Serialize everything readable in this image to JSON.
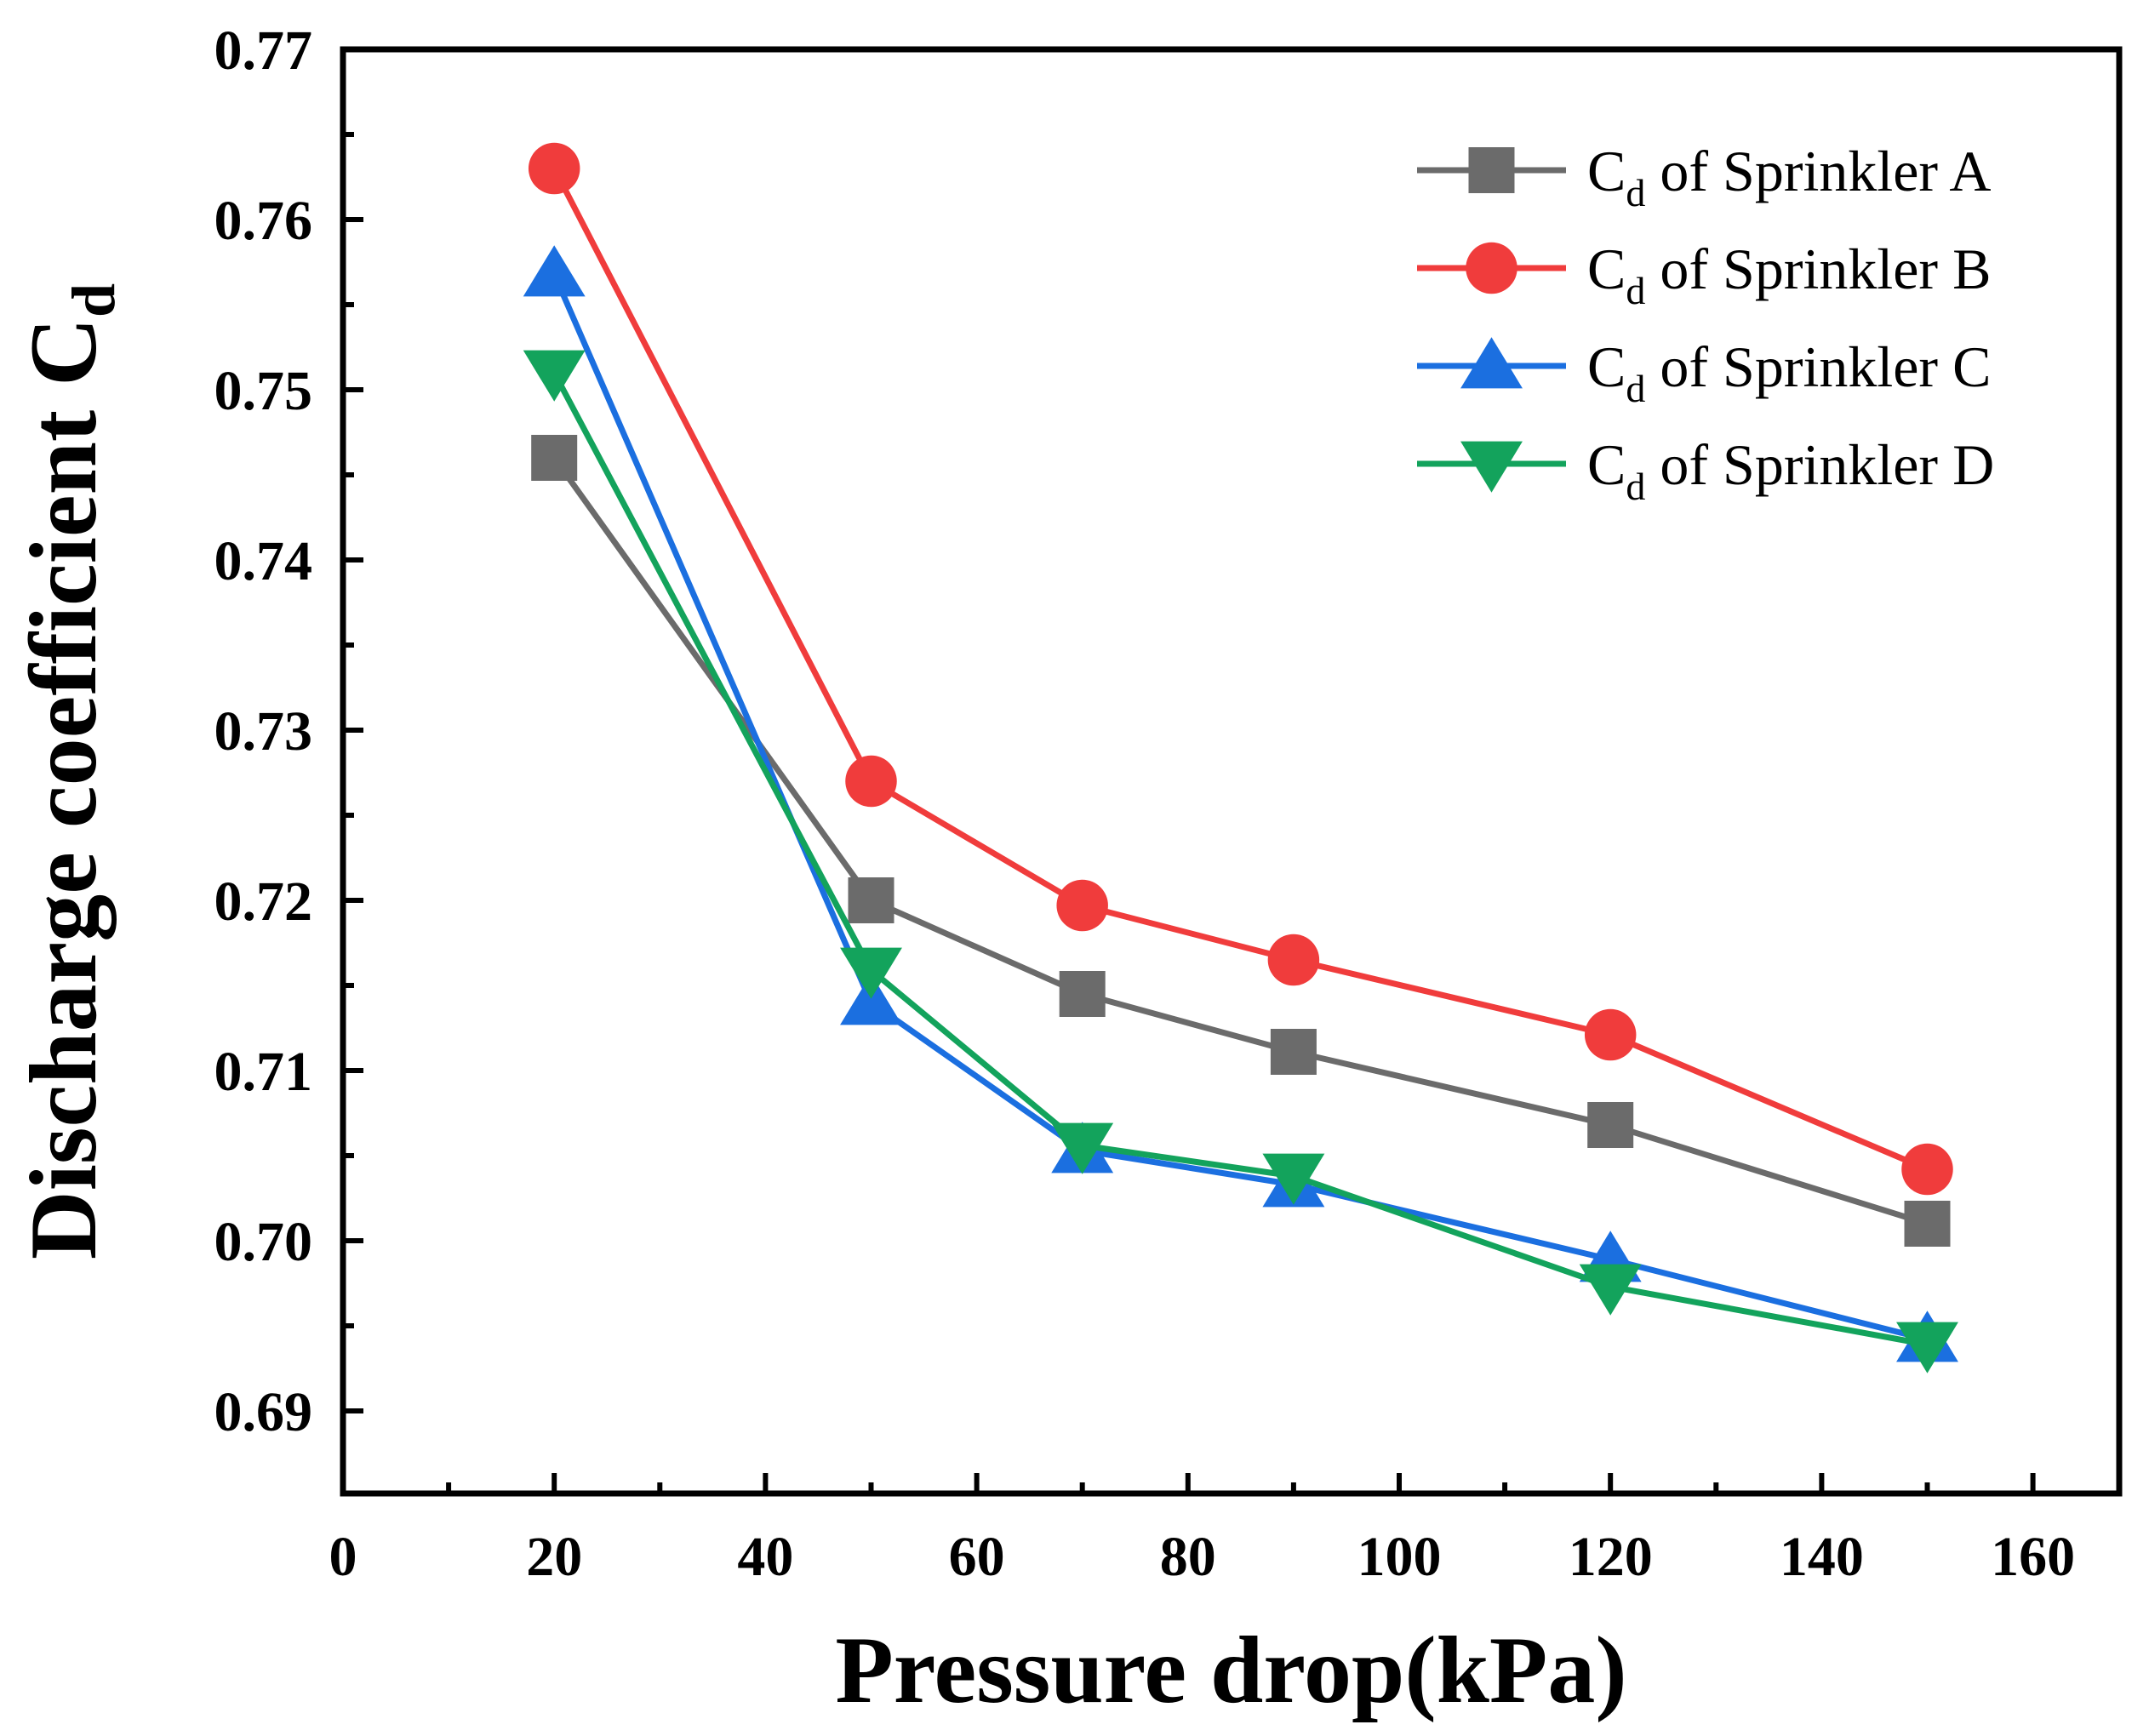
{
  "chart_data": {
    "type": "line",
    "title": "",
    "xlabel": "Pressure drop(kPa)",
    "ylabel_main": "Discharge coefficient C",
    "ylabel_sub": "d",
    "x": [
      20,
      50,
      70,
      90,
      120,
      150
    ],
    "xlim": [
      0,
      170
    ],
    "ylim": [
      0.6853,
      0.77
    ],
    "xticks": [
      0,
      20,
      40,
      60,
      80,
      100,
      120,
      140,
      160
    ],
    "xtick_labels": [
      "0",
      "20",
      "40",
      "60",
      "80",
      "100",
      "120",
      "140",
      "160"
    ],
    "yticks": [
      0.69,
      0.7,
      0.71,
      0.72,
      0.73,
      0.74,
      0.75,
      0.76,
      0.77
    ],
    "ytick_labels": [
      "0.69",
      "0.70",
      "0.71",
      "0.72",
      "0.73",
      "0.74",
      "0.75",
      "0.76",
      "0.77"
    ],
    "legend_position": "top-right",
    "series": [
      {
        "name": "Sprinkler A",
        "label_main": "C",
        "label_sub": "d",
        "label_rest": " of Sprinkler A",
        "marker": "square",
        "color": "#6b6b6b",
        "values": [
          0.746,
          0.72,
          0.7145,
          0.7111,
          0.7068,
          0.701
        ]
      },
      {
        "name": "Sprinkler B",
        "label_main": "C",
        "label_sub": "d",
        "label_rest": " of Sprinkler B",
        "marker": "circle",
        "color": "#f03c3c",
        "values": [
          0.763,
          0.727,
          0.7197,
          0.7165,
          0.7121,
          0.7042
        ]
      },
      {
        "name": "Sprinkler C",
        "label_main": "C",
        "label_sub": "d",
        "label_rest": " of Sprinkler C",
        "marker": "triangle-up",
        "color": "#1b6fe0",
        "values": [
          0.7568,
          0.714,
          0.7053,
          0.7033,
          0.6989,
          0.6942
        ]
      },
      {
        "name": "Sprinkler D",
        "label_main": "C",
        "label_sub": "d",
        "label_rest": " of Sprinkler D",
        "marker": "triangle-down",
        "color": "#13a35c",
        "values": [
          0.751,
          0.7159,
          0.7056,
          0.7038,
          0.6973,
          0.6939
        ]
      }
    ]
  }
}
